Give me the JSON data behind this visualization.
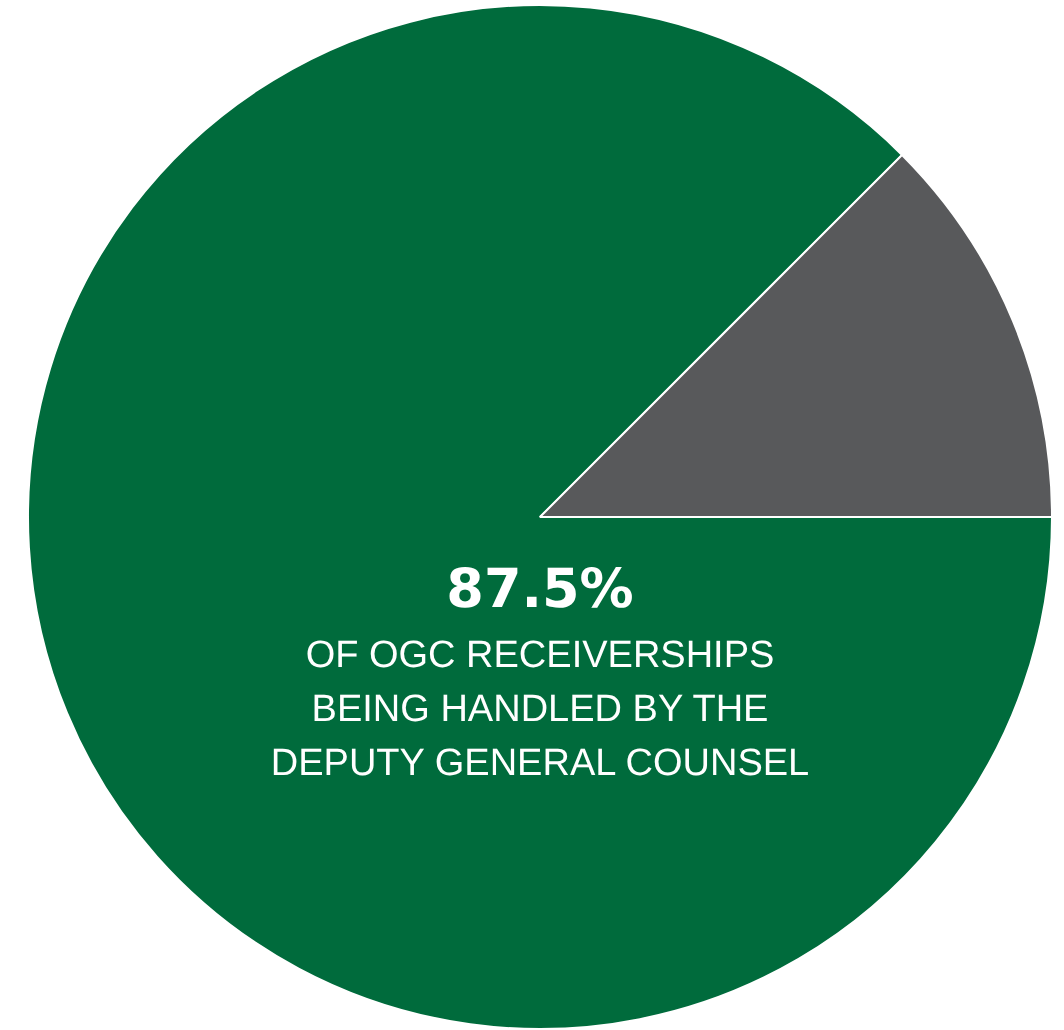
{
  "chart_data": {
    "type": "pie",
    "categories": [
      null,
      null
    ],
    "values": [
      87.5,
      12.5
    ],
    "colors": [
      "#006b3c",
      "#58595b"
    ],
    "value_labels": [
      "87.5%",
      null
    ],
    "annotations": [
      "OF OGC RECEIVERSHIPS\nBEING HANDLED BY THE\nDEPUTY GENERAL COUNSEL"
    ]
  }
}
